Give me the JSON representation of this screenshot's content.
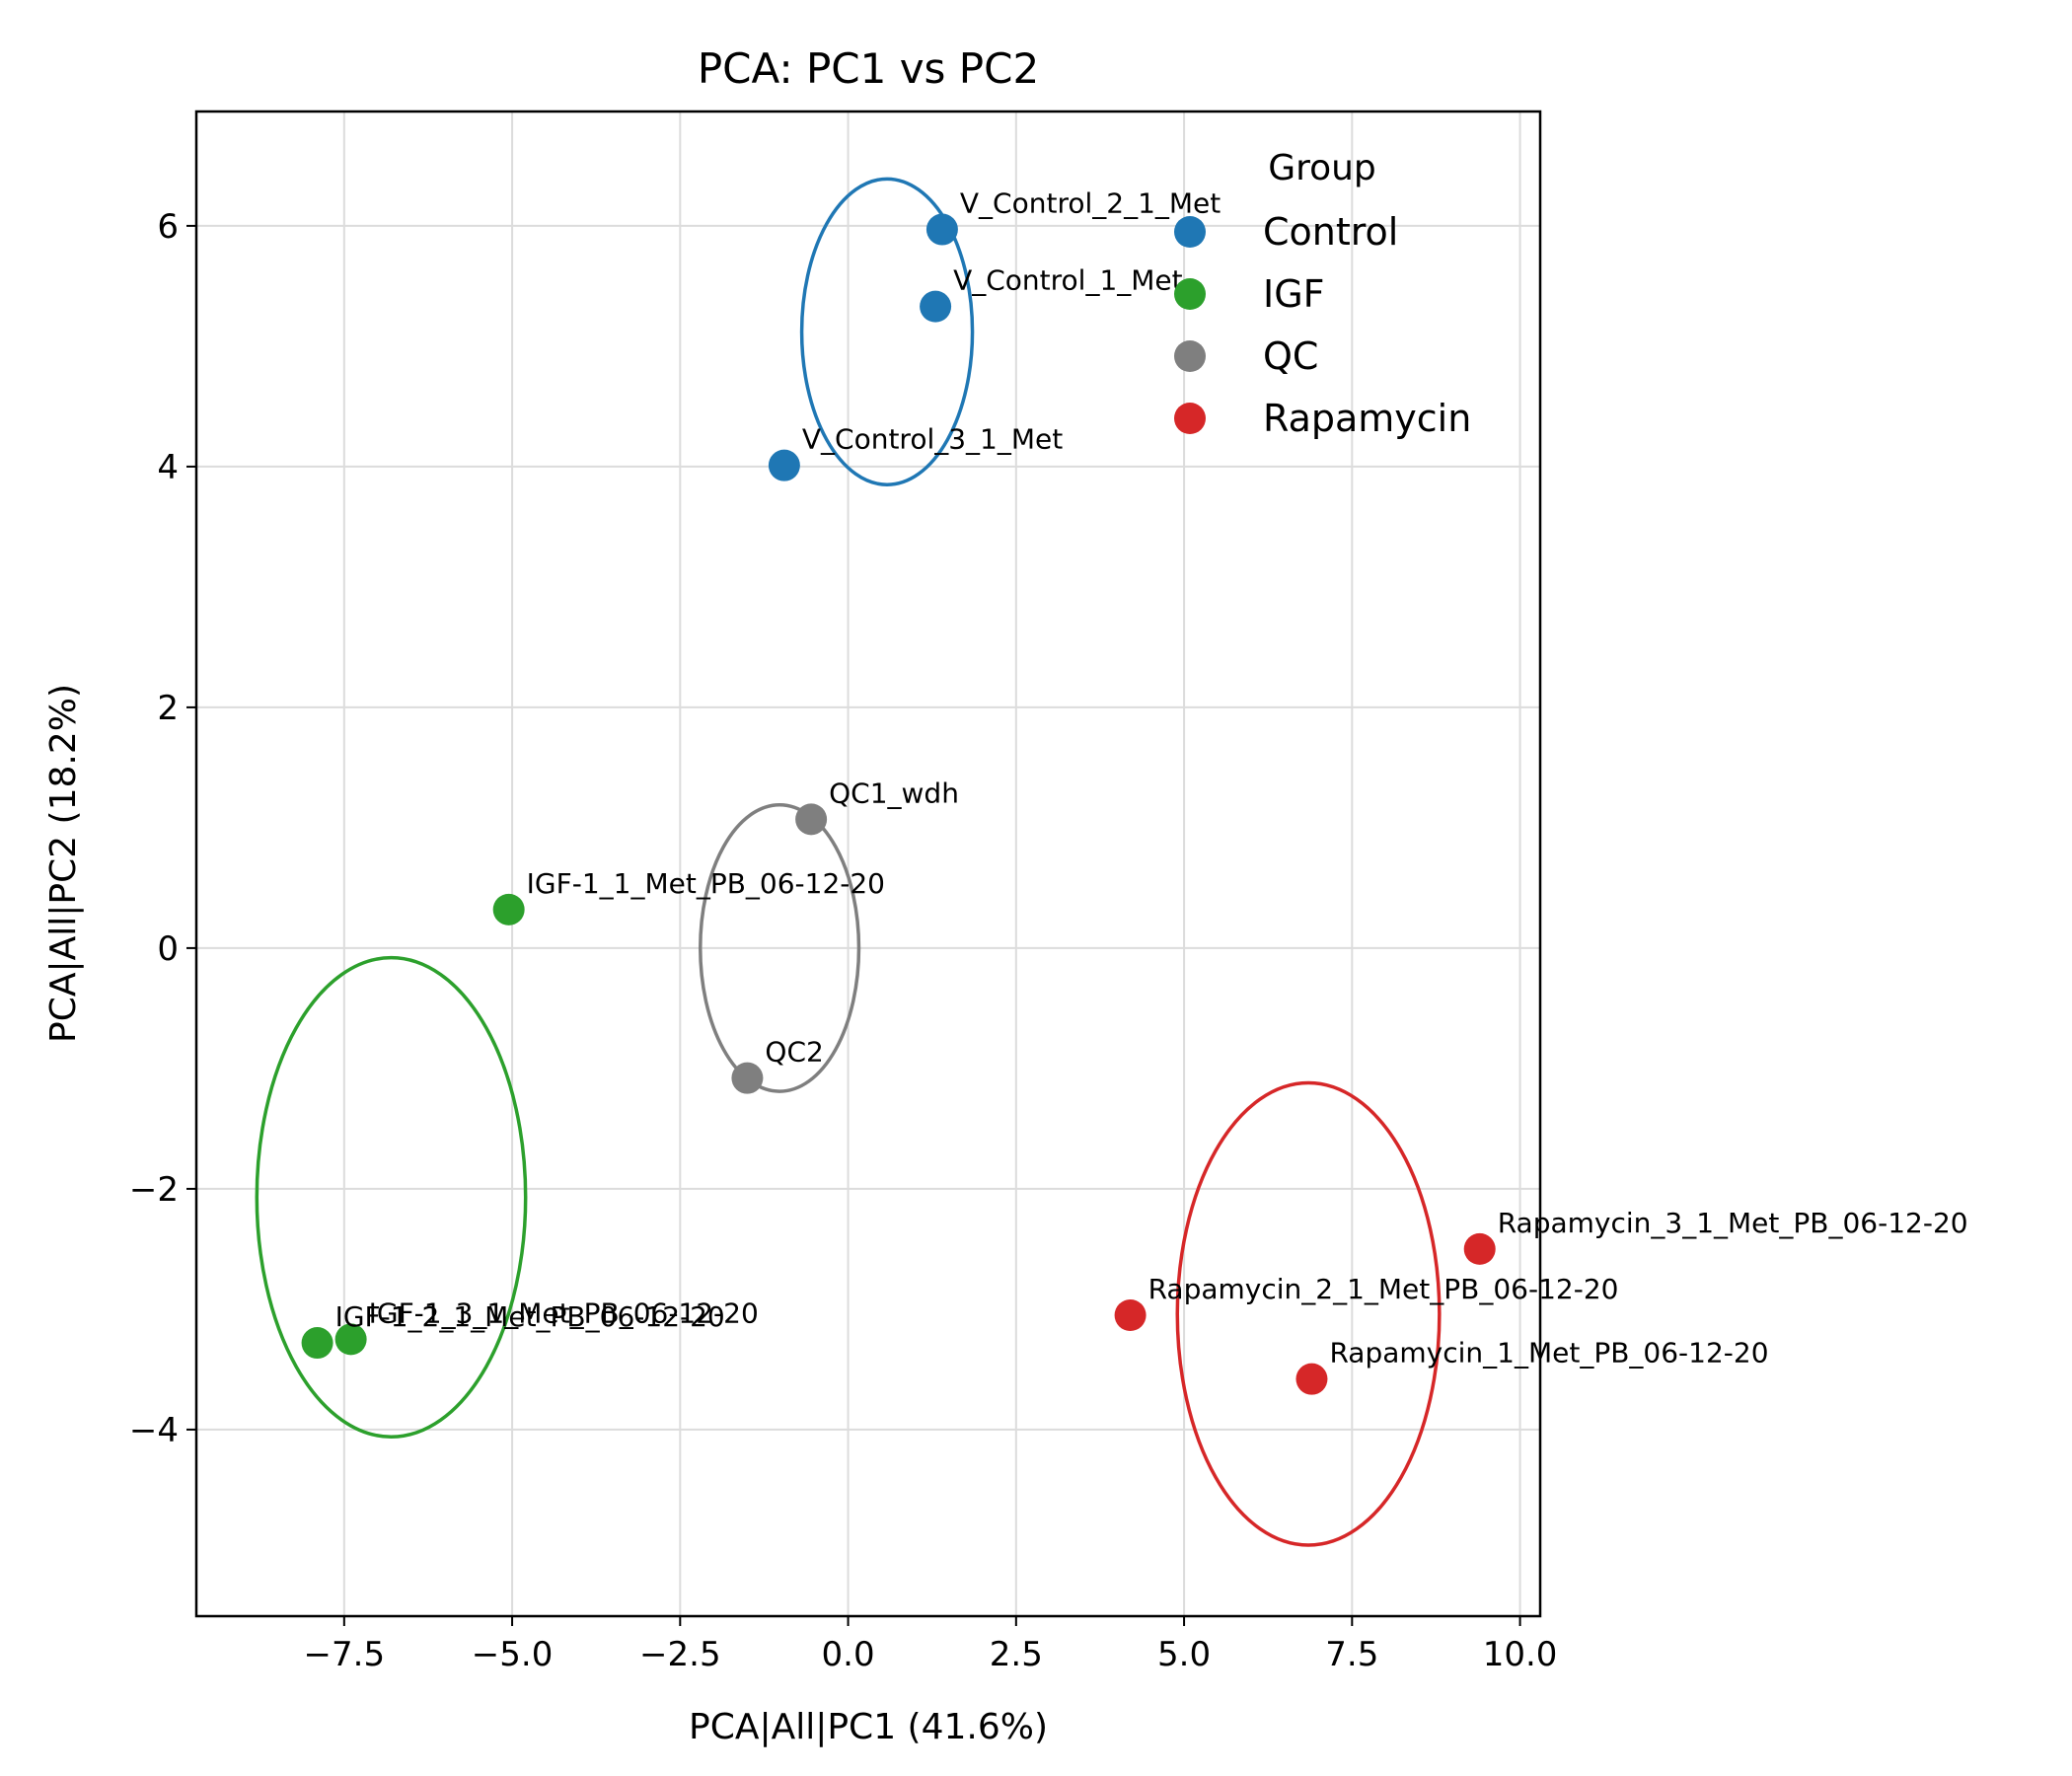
{
  "chart_data": {
    "type": "scatter",
    "title": "PCA: PC1 vs PC2",
    "xlabel": "PCA|All|PC1 (41.6%)",
    "ylabel": "PCA|All|PC2 (18.2%)",
    "xlim": [
      -9.7,
      10.3
    ],
    "ylim": [
      -5.55,
      6.95
    ],
    "xticks": [
      -7.5,
      -5.0,
      -2.5,
      0.0,
      2.5,
      5.0,
      7.5,
      10.0
    ],
    "xtick_labels": [
      "−7.5",
      "−5.0",
      "−2.5",
      "0.0",
      "2.5",
      "5.0",
      "7.5",
      "10.0"
    ],
    "yticks": [
      -4,
      -2,
      0,
      2,
      4,
      6
    ],
    "ytick_labels": [
      "−4",
      "−2",
      "0",
      "2",
      "4",
      "6"
    ],
    "grid": true,
    "legend": {
      "title": "Group",
      "position": "top-right"
    },
    "series": [
      {
        "name": "Control",
        "color": "#1f77b4",
        "points": [
          {
            "x": 1.4,
            "y": 5.97,
            "label": "V_Control_2_1_Met"
          },
          {
            "x": 1.3,
            "y": 5.33,
            "label": "V_Control_1_Met"
          },
          {
            "x": -0.95,
            "y": 4.01,
            "label": "V_Control_3_1_Met"
          }
        ],
        "ellipse": {
          "cx": 0.58,
          "cy": 5.12,
          "rx": 1.27,
          "ry": 1.27
        }
      },
      {
        "name": "IGF",
        "color": "#2ca02c",
        "points": [
          {
            "x": -5.05,
            "y": 0.32,
            "label": "IGF-1_1_Met_PB_06-12-20"
          },
          {
            "x": -7.9,
            "y": -3.28,
            "label": "IGF-1_2_1_Met_PB_06-12-20"
          },
          {
            "x": -7.4,
            "y": -3.25,
            "label": "IGF-1_3_1_Met_PB_06-12-20"
          }
        ],
        "ellipse": {
          "cx": -6.8,
          "cy": -2.07,
          "rx": 2.0,
          "ry": 1.99
        }
      },
      {
        "name": "QC",
        "color": "#7f7f7f",
        "points": [
          {
            "x": -0.55,
            "y": 1.07,
            "label": "QC1_wdh"
          },
          {
            "x": -1.5,
            "y": -1.08,
            "label": "QC2"
          }
        ],
        "ellipse": {
          "cx": -1.02,
          "cy": 0.0,
          "rx": 1.18,
          "ry": 1.19
        }
      },
      {
        "name": "Rapamycin",
        "color": "#d62728",
        "points": [
          {
            "x": 9.4,
            "y": -2.5,
            "label": "Rapamycin_3_1_Met_PB_06-12-20"
          },
          {
            "x": 4.2,
            "y": -3.05,
            "label": "Rapamycin_2_1_Met_PB_06-12-20"
          },
          {
            "x": 6.9,
            "y": -3.58,
            "label": "Rapamycin_1_Met_PB_06-12-20"
          }
        ],
        "ellipse": {
          "cx": 6.85,
          "cy": -3.04,
          "rx": 1.95,
          "ry": 1.92
        }
      }
    ]
  }
}
